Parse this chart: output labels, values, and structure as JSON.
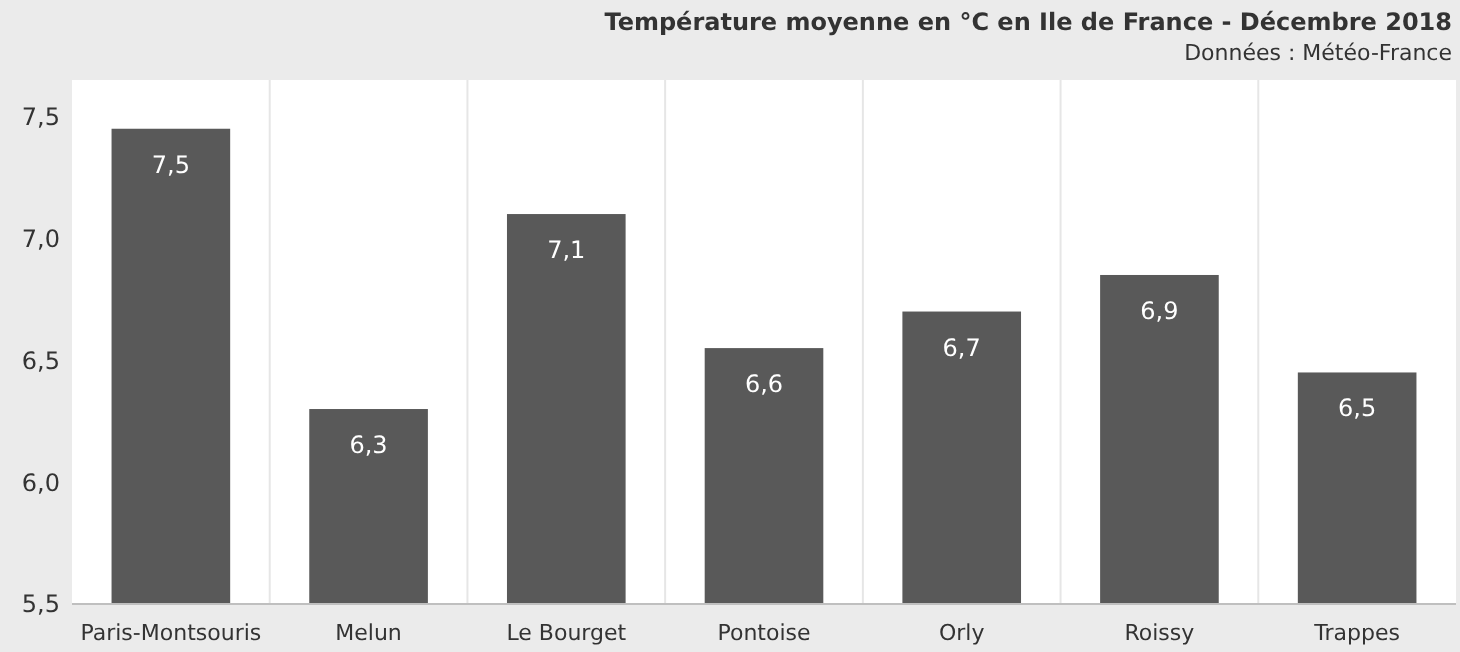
{
  "chart_data": {
    "type": "bar",
    "title": "Température moyenne en °C en Ile de France - Décembre 2018",
    "subtitle": "Données : Météo-France",
    "categories": [
      "Paris-Montsouris",
      "Melun",
      "Le Bourget",
      "Pontoise",
      "Orly",
      "Roissy",
      "Trappes"
    ],
    "values": [
      7.45,
      6.3,
      7.1,
      6.55,
      6.7,
      6.85,
      6.45
    ],
    "value_labels": [
      "7,5",
      "6,3",
      "7,1",
      "6,6",
      "6,7",
      "6,9",
      "6,5"
    ],
    "color": "#595959",
    "ylim": [
      5.5,
      7.65
    ],
    "yticks": [
      {
        "value": 5.5,
        "label": "5,5"
      },
      {
        "value": 6,
        "label": "6,0"
      },
      {
        "value": 6.5,
        "label": "6,5"
      },
      {
        "value": 7,
        "label": "7,0"
      },
      {
        "value": 7.5,
        "label": "7,5"
      }
    ],
    "grid": "x"
  }
}
